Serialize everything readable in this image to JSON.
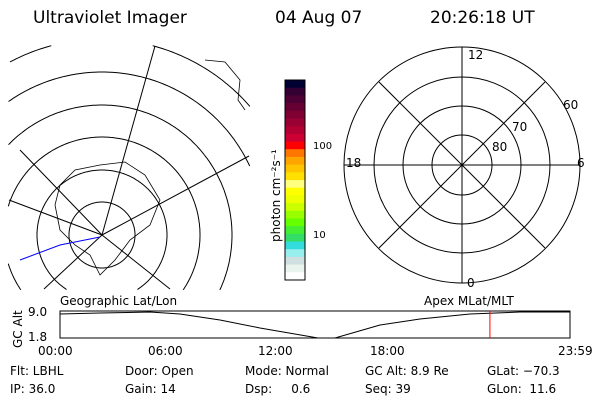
{
  "header": {
    "title": "Ultraviolet Imager",
    "date": "04 Aug 07",
    "time": "20:26:18 UT"
  },
  "colorbar": {
    "label": "photon cm⁻²s⁻¹",
    "ticks": [
      "100",
      "10"
    ],
    "colors": [
      "#000033",
      "#330033",
      "#4d0033",
      "#660033",
      "#800033",
      "#990033",
      "#b30033",
      "#cc0033",
      "#ff0000",
      "#ff7700",
      "#ffa500",
      "#ffc400",
      "#ffe000",
      "#ffff80",
      "#ffff00",
      "#eeff00",
      "#ccff00",
      "#99ff00",
      "#66ff00",
      "#44ee33",
      "#33dd66",
      "#33dddd",
      "#99eeee",
      "#d0e0e0",
      "#eaf4ee",
      "#ffffff"
    ]
  },
  "polar": {
    "mlt": [
      "12",
      "18",
      "6",
      "0"
    ],
    "mlat": [
      "60",
      "70",
      "80"
    ]
  },
  "timeline": {
    "left_label": "Geographic Lat/Lon",
    "right_label": "Apex MLat/MLT",
    "ylabel": "GC Alt",
    "ymax": "9.0",
    "ymin": "1.8",
    "xticks": [
      "00:00",
      "06:00",
      "12:00",
      "18:00",
      "23:59"
    ],
    "current_fraction": 0.843,
    "marker_color": "#ff0000"
  },
  "info": {
    "row1": [
      "Flt: LBHL",
      "Door: Open",
      "Mode: Normal",
      "GC Alt: 8.9 Re",
      "GLat: −70.3"
    ],
    "row2": [
      "IP: 36.0",
      "Gain: 14",
      "Dsp:     0.6",
      "Seq: 39",
      "GLon:  11.6"
    ]
  }
}
